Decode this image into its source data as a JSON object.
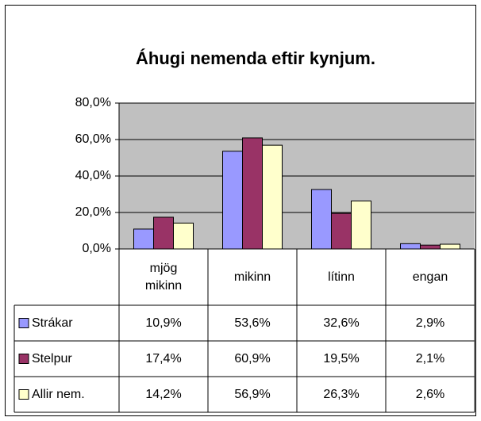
{
  "chart_data": {
    "type": "bar",
    "title": "Áhugi nemenda eftir kynjum.",
    "categories": [
      "mjög mikinn",
      "mikinn",
      "lítinn",
      "engan"
    ],
    "series": [
      {
        "name": "Strákar",
        "color": "#9999ff",
        "values": [
          10.9,
          53.6,
          32.6,
          2.9
        ],
        "value_labels": [
          "10,9%",
          "53,6%",
          "32,6%",
          "2,9%"
        ]
      },
      {
        "name": "Stelpur",
        "color": "#993366",
        "values": [
          17.4,
          60.9,
          19.5,
          2.1
        ],
        "value_labels": [
          "17,4%",
          "60,9%",
          "19,5%",
          "2,1%"
        ]
      },
      {
        "name": "Allir nem.",
        "color": "#ffffcc",
        "values": [
          14.2,
          56.9,
          26.3,
          2.6
        ],
        "value_labels": [
          "14,2%",
          "56,9%",
          "26,3%",
          "2,6%"
        ]
      }
    ],
    "ylim": [
      0,
      80
    ],
    "yticks": [
      {
        "value": 0,
        "label": "0,0%"
      },
      {
        "value": 20,
        "label": "20,0%"
      },
      {
        "value": 40,
        "label": "40,0%"
      },
      {
        "value": 60,
        "label": "60,0%"
      },
      {
        "value": 80,
        "label": "80,0%"
      }
    ],
    "grid": true,
    "plot_background": "#c0c0c0"
  }
}
